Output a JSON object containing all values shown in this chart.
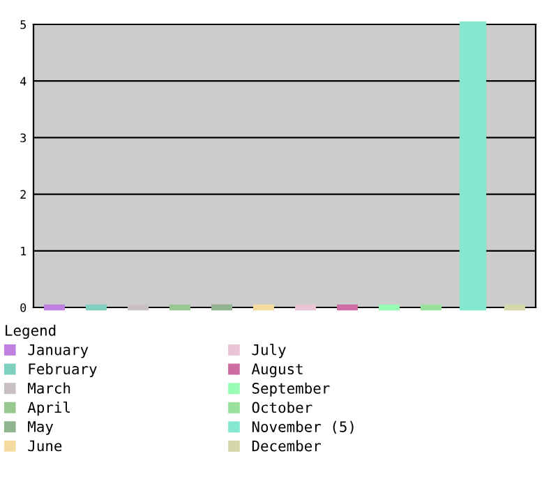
{
  "chart_data": {
    "type": "bar",
    "legend_title": "Legend",
    "legend": "bottom",
    "grid": "y",
    "categories": [
      null,
      null,
      null,
      null,
      null,
      null,
      null,
      null,
      null,
      null,
      null,
      null
    ],
    "ylim": [
      0,
      5
    ],
    "yticks": [
      0,
      1,
      2,
      3,
      4,
      5
    ],
    "series": [
      {
        "name": "January",
        "color": "#c080e0",
        "values": [
          0,
          null,
          null,
          null,
          null,
          null,
          null,
          null,
          null,
          null,
          null,
          null
        ]
      },
      {
        "name": "February",
        "color": "#80d0c0",
        "values": [
          null,
          0,
          null,
          null,
          null,
          null,
          null,
          null,
          null,
          null,
          null,
          null
        ]
      },
      {
        "name": "March",
        "color": "#c8c0c4",
        "values": [
          null,
          null,
          0,
          null,
          null,
          null,
          null,
          null,
          null,
          null,
          null,
          null
        ]
      },
      {
        "name": "April",
        "color": "#98c890",
        "values": [
          null,
          null,
          null,
          0,
          null,
          null,
          null,
          null,
          null,
          null,
          null,
          null
        ]
      },
      {
        "name": "May",
        "color": "#90b490",
        "values": [
          null,
          null,
          null,
          null,
          0,
          null,
          null,
          null,
          null,
          null,
          null,
          null
        ]
      },
      {
        "name": "June",
        "color": "#f4dca0",
        "values": [
          null,
          null,
          null,
          null,
          null,
          0,
          null,
          null,
          null,
          null,
          null,
          null
        ]
      },
      {
        "name": "July",
        "color": "#e8c4d4",
        "values": [
          null,
          null,
          null,
          null,
          null,
          null,
          0,
          null,
          null,
          null,
          null,
          null
        ]
      },
      {
        "name": "August",
        "color": "#cc6ca0",
        "values": [
          null,
          null,
          null,
          null,
          null,
          null,
          null,
          0,
          null,
          null,
          null,
          null
        ]
      },
      {
        "name": "September",
        "color": "#98fcb4",
        "values": [
          null,
          null,
          null,
          null,
          null,
          null,
          null,
          null,
          0,
          null,
          null,
          null
        ]
      },
      {
        "name": "October",
        "color": "#98e09c",
        "values": [
          null,
          null,
          null,
          null,
          null,
          null,
          null,
          null,
          null,
          0,
          null,
          null
        ]
      },
      {
        "name": "November (5)",
        "color": "#84e8d0",
        "values": [
          null,
          null,
          null,
          null,
          null,
          null,
          null,
          null,
          null,
          null,
          5,
          null
        ]
      },
      {
        "name": "December",
        "color": "#d4d8a8",
        "values": [
          null,
          null,
          null,
          null,
          null,
          null,
          null,
          null,
          null,
          null,
          null,
          0
        ]
      }
    ]
  }
}
